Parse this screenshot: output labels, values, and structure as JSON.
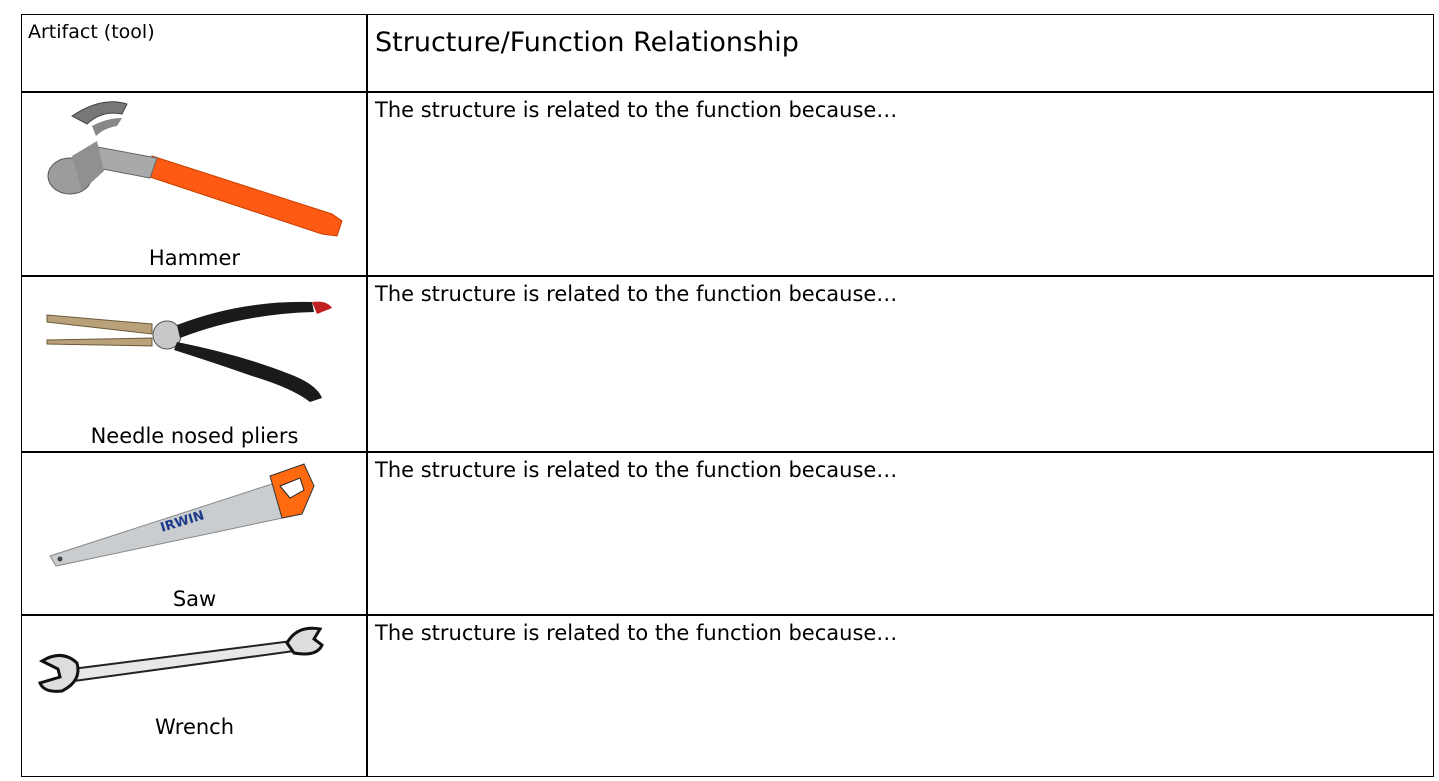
{
  "table": {
    "header": [
      "Artifact (tool)",
      "Structure/Function Relationship"
    ],
    "rows": [
      {
        "tool": "Hammer",
        "text": "The structure is related to the function because…"
      },
      {
        "tool": "Needle nosed pliers",
        "text": "The structure is related to the function because…"
      },
      {
        "tool": "Saw",
        "text": "The structure is related to the function because…",
        "image_text": "IRWIN"
      },
      {
        "tool": "Wrench",
        "text": "The structure is related to the function because…"
      }
    ]
  }
}
